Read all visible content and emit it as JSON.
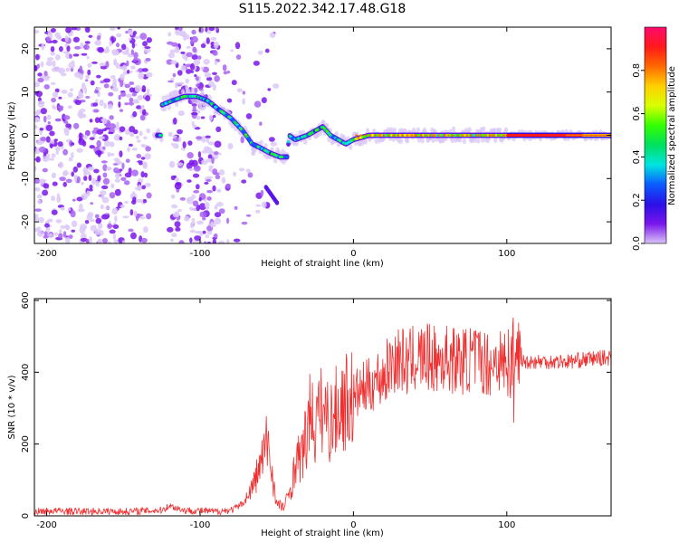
{
  "figure_title": "S115.2022.342.17.48.G18",
  "chart_data": [
    {
      "type": "heatmap",
      "title": "S115.2022.342.17.48.G18",
      "xlabel": "Height of straight line (km)",
      "ylabel": "Frequency (Hz)",
      "xlim": [
        -208,
        168
      ],
      "ylim": [
        -25,
        25
      ],
      "x_ticks": [
        -200,
        -100,
        0,
        100
      ],
      "x_tick_labels": [
        "-200",
        "-100",
        "0",
        "100"
      ],
      "y_ticks": [
        -20,
        -10,
        0,
        10,
        20
      ],
      "y_tick_labels": [
        "-20",
        "-10",
        "0",
        "10",
        "20"
      ],
      "colorbar": {
        "label": "Normalized spectral amplitude",
        "range": [
          0,
          1
        ],
        "ticks": [
          0,
          0.2,
          0.4,
          0.6,
          0.8
        ],
        "tick_labels": [
          "0.0",
          "0.2",
          "0.4",
          "0.6",
          "0.8"
        ],
        "colormap": [
          "#d9c4f7",
          "#7a16ec",
          "#2a10e6",
          "#0a5cff",
          "#00e5e0",
          "#00e060",
          "#33ff00",
          "#d8ff00",
          "#ffd000",
          "#ff6a00",
          "#ff1a1a",
          "#ff0a6e"
        ]
      },
      "ridge": [
        {
          "x": -125,
          "y": 7
        },
        {
          "x": -118,
          "y": 8
        },
        {
          "x": -110,
          "y": 9
        },
        {
          "x": -102,
          "y": 9
        },
        {
          "x": -95,
          "y": 8
        },
        {
          "x": -88,
          "y": 6
        },
        {
          "x": -80,
          "y": 4
        },
        {
          "x": -72,
          "y": 1
        },
        {
          "x": -66,
          "y": -2
        },
        {
          "x": -60,
          "y": -3
        },
        {
          "x": -55,
          "y": -4
        },
        {
          "x": -48,
          "y": -5
        },
        {
          "x": -43,
          "y": -5
        },
        {
          "x": -42,
          "y": 0
        },
        {
          "x": -38,
          "y": -1
        },
        {
          "x": -30,
          "y": 0
        },
        {
          "x": -25,
          "y": 1
        },
        {
          "x": -20,
          "y": 2
        },
        {
          "x": -15,
          "y": 0
        },
        {
          "x": -10,
          "y": -1
        },
        {
          "x": -5,
          "y": -2
        },
        {
          "x": 0,
          "y": -1
        },
        {
          "x": 10,
          "y": 0
        },
        {
          "x": 40,
          "y": 0
        },
        {
          "x": 70,
          "y": 0
        },
        {
          "x": 95,
          "y": 0
        },
        {
          "x": 100,
          "y": 0
        },
        {
          "x": 168,
          "y": 0
        }
      ]
    },
    {
      "type": "line",
      "xlabel": "Height of straight line (km)",
      "ylabel": "SNR (10 * v/v)",
      "xlim": [
        -208,
        168
      ],
      "ylim": [
        0,
        605
      ],
      "x_ticks": [
        -200,
        -100,
        0,
        100
      ],
      "x_tick_labels": [
        "-200",
        "-100",
        "0",
        "100"
      ],
      "y_ticks": [
        0,
        200,
        400,
        600
      ],
      "y_tick_labels": [
        "0",
        "200",
        "400",
        "600"
      ],
      "line_color": "#f03030",
      "series": [
        {
          "x": [
            -208,
            -195,
            -180,
            -165,
            -150,
            -135,
            -125,
            -120,
            -115,
            -110,
            -100,
            -90,
            -80,
            -75,
            -70,
            -65,
            -60,
            -56,
            -53,
            -50,
            -45,
            -40,
            -37,
            -35,
            -30,
            -28,
            -25,
            -20,
            -15,
            -10,
            -5,
            0,
            5,
            10,
            15,
            20,
            25,
            30,
            35,
            40,
            50,
            55,
            60,
            70,
            80,
            90,
            95,
            100,
            102,
            104,
            106,
            110,
            120,
            140,
            160,
            168
          ],
          "y": [
            12,
            14,
            12,
            13,
            12,
            14,
            16,
            28,
            22,
            15,
            14,
            12,
            16,
            25,
            45,
            90,
            150,
            210,
            120,
            30,
            25,
            90,
            170,
            150,
            230,
            290,
            250,
            300,
            260,
            300,
            320,
            330,
            350,
            360,
            380,
            390,
            430,
            440,
            420,
            440,
            440,
            430,
            440,
            430,
            440,
            420,
            440,
            430,
            400,
            460,
            440,
            430,
            430,
            430,
            440,
            440
          ]
        }
      ]
    }
  ]
}
